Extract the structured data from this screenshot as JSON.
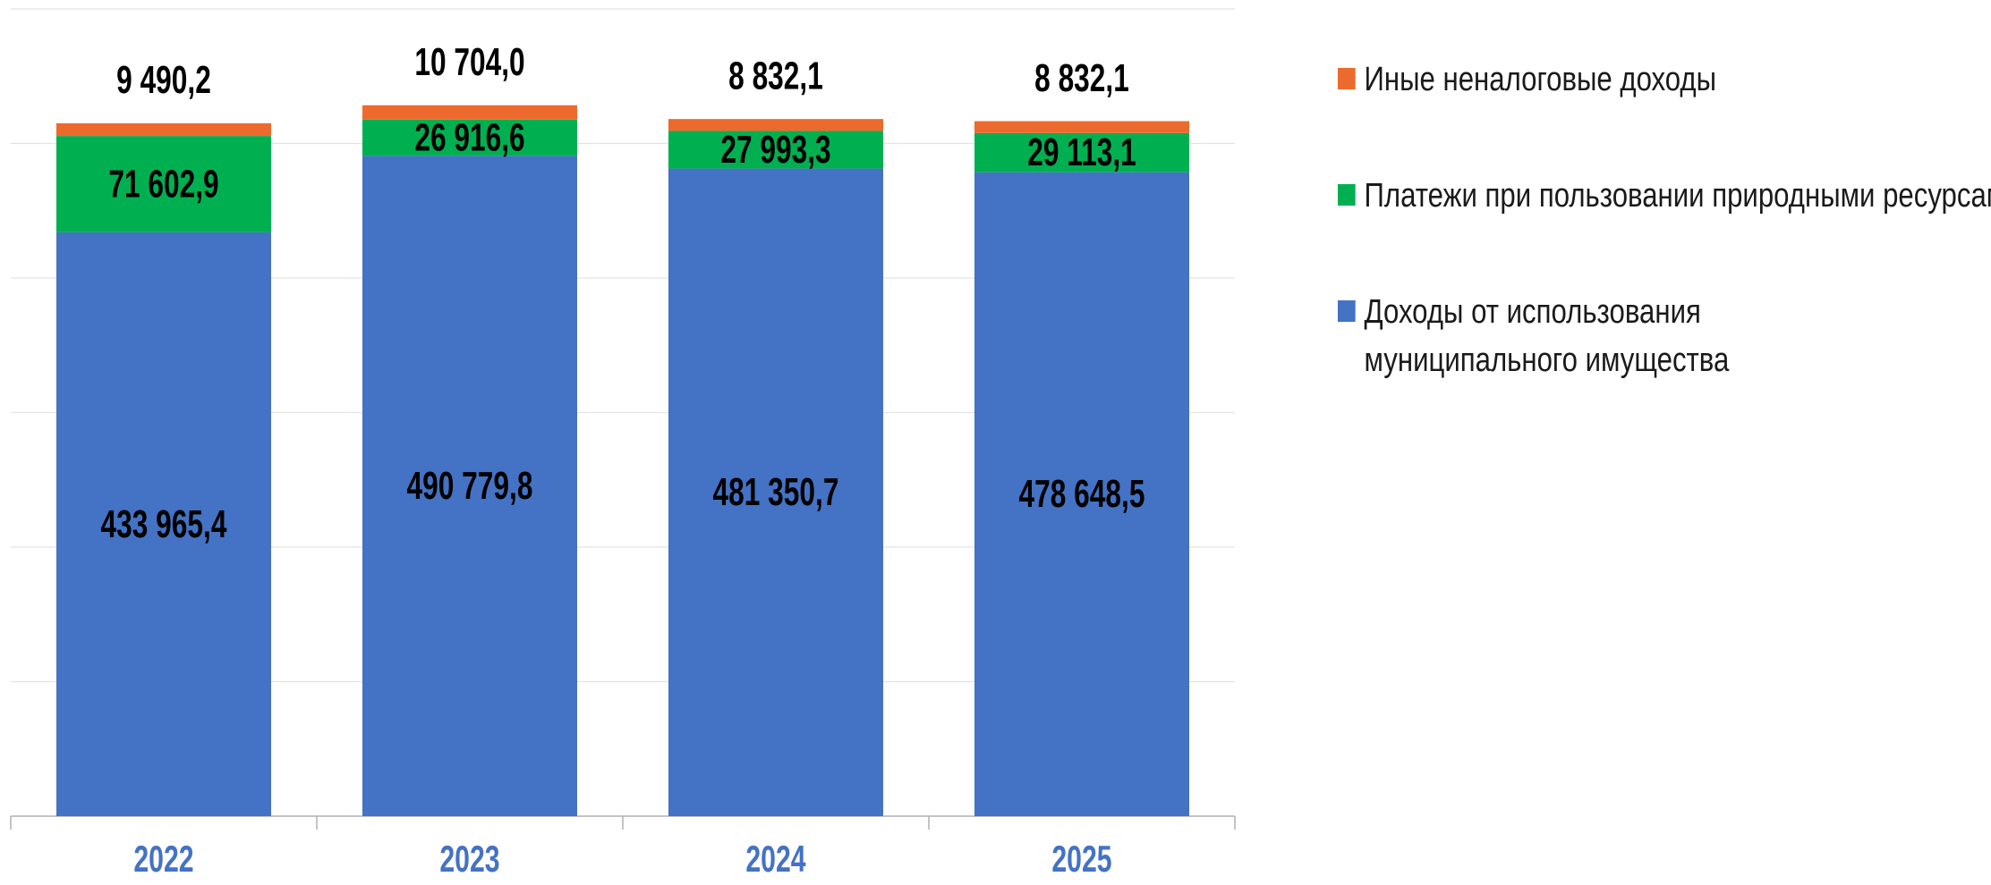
{
  "chart_data": {
    "type": "bar",
    "stacked": true,
    "categories": [
      "2022",
      "2023",
      "2024",
      "2025"
    ],
    "series": [
      {
        "name": "Доходы от использования муниципального имущества",
        "color": "#4472C4",
        "values": [
          433965.4,
          490779.8,
          481350.7,
          478648.5
        ],
        "labels": [
          "433 965,4",
          "490 779,8",
          "481 350,7",
          "478 648,5"
        ]
      },
      {
        "name": "Платежи при пользовании природными ресурсами",
        "color": "#00B050",
        "values": [
          71602.9,
          26916.6,
          27993.3,
          29113.1
        ],
        "labels": [
          "71 602,9",
          "26 916,6",
          "27 993,3",
          "29 113,1"
        ]
      },
      {
        "name": "Иные неналоговые доходы",
        "color": "#ED6A2E",
        "values": [
          9490.2,
          10704.0,
          8832.1,
          8832.1
        ],
        "labels": [
          "9 490,2",
          "10 704,0",
          "8 832,1",
          "8 832,1"
        ]
      }
    ],
    "ylim": [
      0,
      600000
    ],
    "grid": true,
    "legend_position": "right",
    "xlabel": "",
    "ylabel": ""
  },
  "legend": [
    {
      "label": "Иные неналоговые доходы",
      "color": "#ED6A2E"
    },
    {
      "label": "Платежи при пользовании природными ресурсами",
      "color": "#00B050"
    },
    {
      "label": "Доходы от использования муниципального имущества",
      "color": "#4472C4"
    }
  ]
}
